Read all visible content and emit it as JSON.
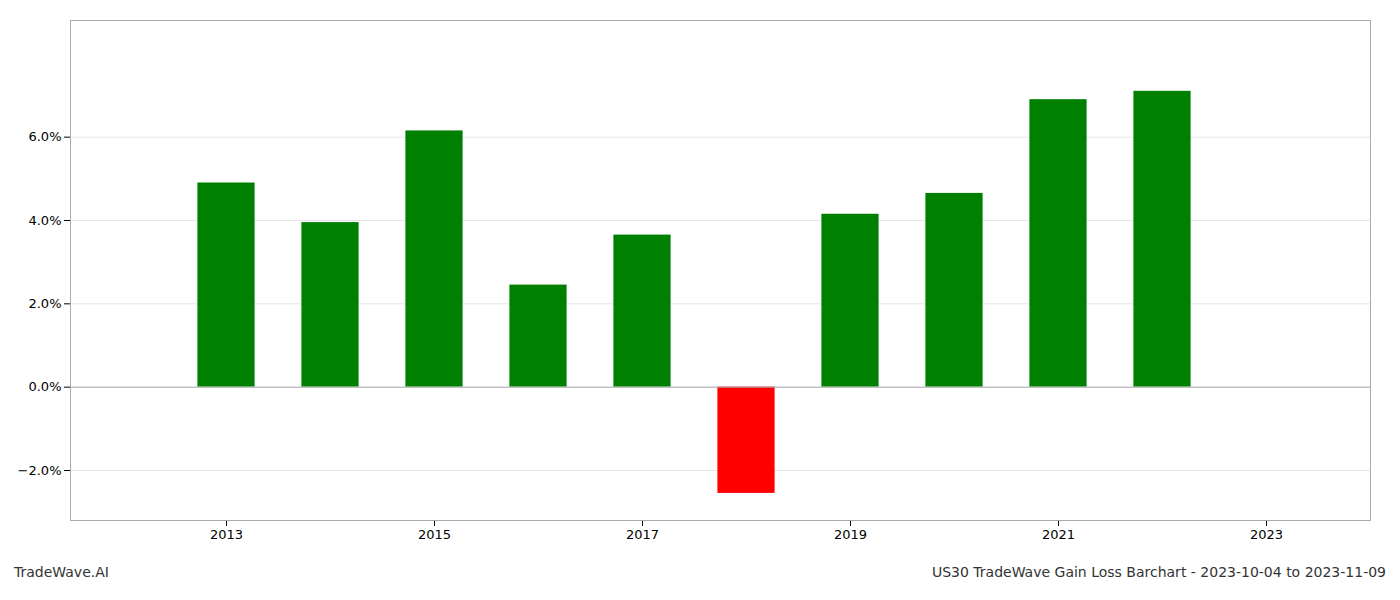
{
  "chart_data": {
    "type": "bar",
    "x": [
      2013,
      2014,
      2015,
      2016,
      2017,
      2018,
      2019,
      2020,
      2021,
      2022
    ],
    "values": [
      0.049,
      0.0395,
      0.0615,
      0.0245,
      0.0365,
      -0.0255,
      0.0415,
      0.0465,
      0.069,
      0.071
    ],
    "colors": [
      "#008000",
      "#008000",
      "#008000",
      "#008000",
      "#008000",
      "#ff0000",
      "#008000",
      "#008000",
      "#008000",
      "#008000"
    ],
    "xlim": [
      2011.5,
      2024.0
    ],
    "xticks": [
      2013,
      2015,
      2017,
      2019,
      2021,
      2023
    ],
    "ylim": [
      -0.032,
      0.088
    ],
    "yticks": [
      {
        "value": -0.02,
        "label": "−2.0%"
      },
      {
        "value": 0.0,
        "label": "0.0%"
      },
      {
        "value": 0.02,
        "label": "2.0%"
      },
      {
        "value": 0.04,
        "label": "4.0%"
      },
      {
        "value": 0.06,
        "label": "6.0%"
      }
    ],
    "grid": true,
    "annotations": [
      "TradeWave.AI",
      "US30 TradeWave Gain Loss Barchart - 2023-10-04 to 2023-11-09"
    ]
  }
}
